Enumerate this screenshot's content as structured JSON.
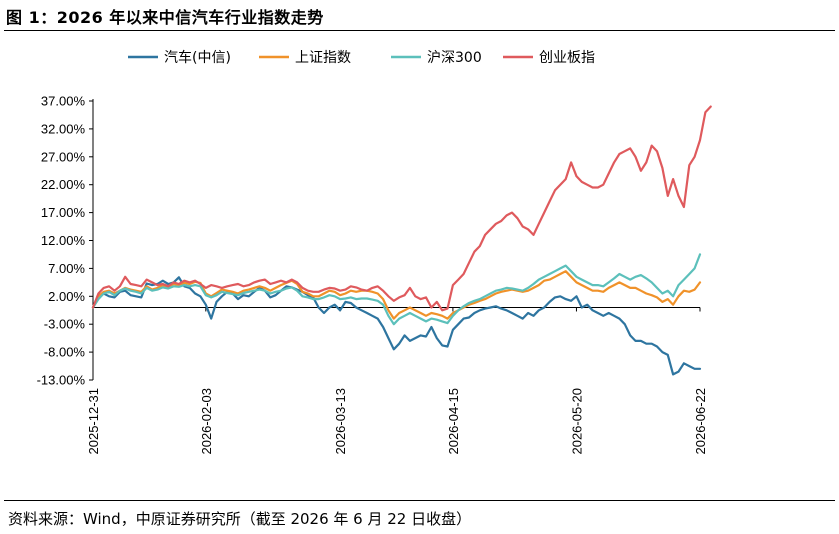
{
  "figure": {
    "title": "图 1：2026 年以来中信汽车行业指数走势",
    "source": "资料来源：Wind，中原证券研究所（截至 2026 年 6 月 22 日收盘）"
  },
  "chart_data": {
    "type": "line",
    "title": "",
    "xlabel": "",
    "ylabel": "",
    "ylim": [
      -0.13,
      0.37
    ],
    "yticks": [
      "37.00%",
      "32.00%",
      "27.00%",
      "22.00%",
      "17.00%",
      "12.00%",
      "7.00%",
      "2.00%",
      "-3.00%",
      "-8.00%",
      "-13.00%"
    ],
    "ytick_values": [
      0.37,
      0.32,
      0.27,
      0.22,
      0.17,
      0.12,
      0.07,
      0.02,
      -0.03,
      -0.08,
      -0.13
    ],
    "xtick_labels": [
      "2025-12-31",
      "2026-02-03",
      "2026-03-13",
      "2026-04-15",
      "2026-05-20",
      "2026-06-22"
    ],
    "xtick_index": [
      0,
      21,
      46,
      67,
      90,
      113
    ],
    "num_points": 114,
    "grid": false,
    "legend_position": "top",
    "series": [
      {
        "name": "汽车(中信)",
        "color": "#2e75a0",
        "values": [
          0,
          0.022,
          0.025,
          0.02,
          0.018,
          0.028,
          0.03,
          0.022,
          0.02,
          0.018,
          0.043,
          0.04,
          0.042,
          0.048,
          0.042,
          0.045,
          0.054,
          0.038,
          0.035,
          0.025,
          0.02,
          0.005,
          -0.02,
          0.01,
          0.02,
          0.028,
          0.025,
          0.015,
          0.022,
          0.02,
          0.028,
          0.035,
          0.03,
          0.018,
          0.022,
          0.03,
          0.038,
          0.036,
          0.032,
          0.028,
          0.022,
          0.018,
          0.0,
          -0.01,
          0.0,
          0.005,
          -0.005,
          0.01,
          0.008,
          0.0,
          -0.005,
          -0.01,
          -0.015,
          -0.02,
          -0.035,
          -0.055,
          -0.075,
          -0.065,
          -0.05,
          -0.06,
          -0.055,
          -0.05,
          -0.052,
          -0.035,
          -0.055,
          -0.068,
          -0.07,
          -0.04,
          -0.03,
          -0.02,
          -0.018,
          -0.01,
          -0.005,
          -0.002,
          0.0,
          0.002,
          -0.002,
          -0.005,
          -0.01,
          -0.015,
          -0.02,
          -0.01,
          -0.015,
          -0.005,
          0.0,
          0.01,
          0.018,
          0.02,
          0.015,
          0.012,
          0.02,
          0.0,
          0.005,
          -0.005,
          -0.01,
          -0.015,
          -0.01,
          -0.015,
          -0.02,
          -0.03,
          -0.05,
          -0.06,
          -0.06,
          -0.065,
          -0.065,
          -0.07,
          -0.08,
          -0.085,
          -0.12,
          -0.115,
          -0.1,
          -0.105,
          -0.11,
          -0.11
        ]
      },
      {
        "name": "上证指数",
        "color": "#f0922a",
        "values": [
          0,
          0.02,
          0.028,
          0.03,
          0.025,
          0.03,
          0.035,
          0.032,
          0.03,
          0.028,
          0.038,
          0.032,
          0.035,
          0.04,
          0.036,
          0.042,
          0.04,
          0.044,
          0.042,
          0.046,
          0.044,
          0.025,
          0.02,
          0.026,
          0.032,
          0.03,
          0.028,
          0.025,
          0.03,
          0.032,
          0.035,
          0.038,
          0.035,
          0.03,
          0.035,
          0.04,
          0.044,
          0.048,
          0.042,
          0.028,
          0.025,
          0.02,
          0.02,
          0.025,
          0.03,
          0.028,
          0.022,
          0.025,
          0.03,
          0.028,
          0.03,
          0.03,
          0.028,
          0.025,
          0.015,
          -0.005,
          -0.02,
          -0.01,
          -0.005,
          0.0,
          -0.005,
          -0.01,
          -0.015,
          -0.01,
          -0.012,
          -0.015,
          -0.02,
          -0.01,
          -0.005,
          0.0,
          0.005,
          0.008,
          0.012,
          0.015,
          0.02,
          0.025,
          0.028,
          0.03,
          0.032,
          0.03,
          0.028,
          0.03,
          0.035,
          0.04,
          0.048,
          0.05,
          0.055,
          0.06,
          0.065,
          0.055,
          0.045,
          0.04,
          0.035,
          0.03,
          0.03,
          0.028,
          0.035,
          0.04,
          0.045,
          0.04,
          0.035,
          0.035,
          0.03,
          0.025,
          0.022,
          0.018,
          0.01,
          0.015,
          0.005,
          0.02,
          0.03,
          0.028,
          0.032,
          0.045
        ]
      },
      {
        "name": "沪深300",
        "color": "#5cc0bb",
        "values": [
          0,
          0.015,
          0.025,
          0.028,
          0.022,
          0.03,
          0.034,
          0.03,
          0.028,
          0.025,
          0.035,
          0.03,
          0.032,
          0.036,
          0.034,
          0.038,
          0.037,
          0.04,
          0.038,
          0.04,
          0.038,
          0.022,
          0.018,
          0.022,
          0.028,
          0.026,
          0.024,
          0.022,
          0.026,
          0.028,
          0.03,
          0.032,
          0.03,
          0.025,
          0.028,
          0.03,
          0.034,
          0.036,
          0.03,
          0.02,
          0.018,
          0.015,
          0.015,
          0.018,
          0.022,
          0.02,
          0.015,
          0.016,
          0.018,
          0.015,
          0.016,
          0.016,
          0.014,
          0.012,
          0.005,
          -0.015,
          -0.03,
          -0.02,
          -0.015,
          -0.01,
          -0.015,
          -0.02,
          -0.025,
          -0.02,
          -0.022,
          -0.025,
          -0.028,
          -0.015,
          -0.005,
          0.002,
          0.008,
          0.012,
          0.015,
          0.02,
          0.025,
          0.03,
          0.032,
          0.035,
          0.034,
          0.032,
          0.03,
          0.035,
          0.042,
          0.05,
          0.055,
          0.06,
          0.065,
          0.07,
          0.075,
          0.065,
          0.055,
          0.05,
          0.045,
          0.04,
          0.04,
          0.038,
          0.045,
          0.052,
          0.06,
          0.055,
          0.05,
          0.055,
          0.058,
          0.052,
          0.045,
          0.035,
          0.025,
          0.03,
          0.02,
          0.04,
          0.05,
          0.06,
          0.07,
          0.095
        ]
      },
      {
        "name": "创业板指",
        "color": "#df5a5d",
        "values": [
          0,
          0.025,
          0.035,
          0.038,
          0.03,
          0.038,
          0.055,
          0.042,
          0.04,
          0.038,
          0.05,
          0.045,
          0.04,
          0.042,
          0.038,
          0.045,
          0.042,
          0.048,
          0.045,
          0.048,
          0.042,
          0.035,
          0.04,
          0.038,
          0.035,
          0.038,
          0.04,
          0.042,
          0.038,
          0.04,
          0.045,
          0.048,
          0.05,
          0.042,
          0.045,
          0.048,
          0.045,
          0.05,
          0.045,
          0.035,
          0.03,
          0.028,
          0.028,
          0.032,
          0.035,
          0.034,
          0.03,
          0.032,
          0.038,
          0.036,
          0.032,
          0.03,
          0.035,
          0.038,
          0.03,
          0.02,
          0.012,
          0.018,
          0.022,
          0.035,
          0.02,
          0.015,
          0.018,
          0.0,
          0.01,
          -0.005,
          -0.002,
          0.04,
          0.05,
          0.06,
          0.08,
          0.1,
          0.11,
          0.13,
          0.14,
          0.15,
          0.155,
          0.165,
          0.17,
          0.16,
          0.145,
          0.14,
          0.13,
          0.15,
          0.17,
          0.19,
          0.21,
          0.22,
          0.23,
          0.26,
          0.235,
          0.225,
          0.22,
          0.215,
          0.215,
          0.22,
          0.24,
          0.26,
          0.275,
          0.28,
          0.285,
          0.27,
          0.245,
          0.26,
          0.29,
          0.28,
          0.25,
          0.2,
          0.23,
          0.2,
          0.18,
          0.255,
          0.27,
          0.3,
          0.35,
          0.36
        ]
      }
    ]
  }
}
